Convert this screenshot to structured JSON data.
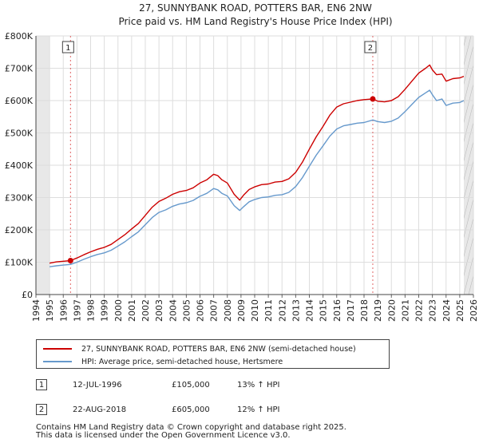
{
  "chart_data": {
    "type": "line",
    "title": "27, SUNNYBANK ROAD, POTTERS BAR, EN6 2NW",
    "subtitle": "Price paid vs. HM Land Registry's House Price Index (HPI)",
    "xlim": [
      1994,
      2026
    ],
    "ylim": [
      0,
      800000
    ],
    "x_ticks": [
      "1994",
      "1995",
      "1996",
      "1997",
      "1998",
      "1999",
      "2000",
      "2001",
      "2002",
      "2003",
      "2004",
      "2005",
      "2006",
      "2007",
      "2008",
      "2009",
      "2010",
      "2011",
      "2012",
      "2013",
      "2014",
      "2015",
      "2016",
      "2017",
      "2018",
      "2019",
      "2020",
      "2021",
      "2022",
      "2023",
      "2024",
      "2025",
      "2026"
    ],
    "y_ticks": [
      {
        "value": 0,
        "label": "£0"
      },
      {
        "value": 100000,
        "label": "£100K"
      },
      {
        "value": 200000,
        "label": "£200K"
      },
      {
        "value": 300000,
        "label": "£300K"
      },
      {
        "value": 400000,
        "label": "£400K"
      },
      {
        "value": 500000,
        "label": "£500K"
      },
      {
        "value": 600000,
        "label": "£600K"
      },
      {
        "value": 700000,
        "label": "£700K"
      },
      {
        "value": 800000,
        "label": "£800K"
      }
    ],
    "grid": true,
    "data_start_year": 1995,
    "data_end_year": 2025.3,
    "series": [
      {
        "name": "27, SUNNYBANK ROAD, POTTERS BAR, EN6 2NW (semi-detached house)",
        "color": "#cc0000",
        "x": [
          1995,
          1995.5,
          1996,
          1996.53,
          1997,
          1997.5,
          1998,
          1998.5,
          1999,
          1999.5,
          2000,
          2000.5,
          2001,
          2001.5,
          2002,
          2002.5,
          2003,
          2003.5,
          2004,
          2004.5,
          2005,
          2005.5,
          2006,
          2006.5,
          2007,
          2007.3,
          2007.6,
          2008,
          2008.5,
          2008.9,
          2009.2,
          2009.6,
          2010,
          2010.5,
          2011,
          2011.5,
          2012,
          2012.5,
          2013,
          2013.5,
          2014,
          2014.5,
          2015,
          2015.5,
          2016,
          2016.5,
          2017,
          2017.5,
          2018,
          2018.64,
          2019,
          2019.5,
          2020,
          2020.5,
          2021,
          2021.5,
          2022,
          2022.5,
          2022.8,
          2023,
          2023.3,
          2023.7,
          2024,
          2024.5,
          2025,
          2025.3
        ],
        "values": [
          97000,
          101000,
          103000,
          105000,
          113000,
          123000,
          132000,
          140000,
          146000,
          155000,
          170000,
          185000,
          203000,
          220000,
          245000,
          270000,
          288000,
          298000,
          310000,
          318000,
          322000,
          330000,
          345000,
          355000,
          372000,
          368000,
          355000,
          345000,
          310000,
          292000,
          308000,
          325000,
          333000,
          340000,
          342000,
          348000,
          350000,
          358000,
          378000,
          410000,
          450000,
          488000,
          520000,
          555000,
          580000,
          590000,
          595000,
          600000,
          603000,
          605000,
          598000,
          596000,
          600000,
          612000,
          635000,
          660000,
          685000,
          700000,
          710000,
          695000,
          680000,
          682000,
          660000,
          668000,
          670000,
          675000
        ]
      },
      {
        "name": "HPI: Average price, semi-detached house, Hertsmere",
        "color": "#6699cc",
        "x": [
          1995,
          1995.5,
          1996,
          1996.53,
          1997,
          1997.5,
          1998,
          1998.5,
          1999,
          1999.5,
          2000,
          2000.5,
          2001,
          2001.5,
          2002,
          2002.5,
          2003,
          2003.5,
          2004,
          2004.5,
          2005,
          2005.5,
          2006,
          2006.5,
          2007,
          2007.3,
          2007.6,
          2008,
          2008.5,
          2008.9,
          2009.2,
          2009.6,
          2010,
          2010.5,
          2011,
          2011.5,
          2012,
          2012.5,
          2013,
          2013.5,
          2014,
          2014.5,
          2015,
          2015.5,
          2016,
          2016.5,
          2017,
          2017.5,
          2018,
          2018.64,
          2019,
          2019.5,
          2020,
          2020.5,
          2021,
          2021.5,
          2022,
          2022.5,
          2022.8,
          2023,
          2023.3,
          2023.7,
          2024,
          2024.5,
          2025,
          2025.3
        ],
        "values": [
          86000,
          89000,
          91000,
          93000,
          100000,
          109000,
          117000,
          124000,
          129000,
          137000,
          150000,
          163000,
          179000,
          194000,
          216000,
          238000,
          254000,
          262000,
          273000,
          280000,
          284000,
          291000,
          304000,
          313000,
          328000,
          324000,
          313000,
          305000,
          275000,
          260000,
          272000,
          287000,
          294000,
          300000,
          302000,
          307000,
          309000,
          316000,
          334000,
          362000,
          397000,
          431000,
          460000,
          490000,
          512000,
          522000,
          526000,
          530000,
          532000,
          540000,
          535000,
          532000,
          536000,
          546000,
          566000,
          588000,
          610000,
          624000,
          632000,
          618000,
          600000,
          605000,
          585000,
          592000,
          594000,
          600000
        ]
      }
    ],
    "sales": [
      {
        "label": "1",
        "x": 1996.53,
        "value": 105000
      },
      {
        "label": "2",
        "x": 2018.64,
        "value": 605000
      }
    ]
  },
  "legend": {
    "price_paid": "27, SUNNYBANK ROAD, POTTERS BAR, EN6 2NW (semi-detached house)",
    "hpi": "HPI: Average price, semi-detached house, Hertsmere"
  },
  "sales_table": [
    {
      "num": "1",
      "date": "12-JUL-1996",
      "price": "£105,000",
      "hpi": "13% ↑ HPI"
    },
    {
      "num": "2",
      "date": "22-AUG-2018",
      "price": "£605,000",
      "hpi": "12% ↑ HPI"
    }
  ],
  "footer": {
    "line1": "Contains HM Land Registry data © Crown copyright and database right 2025.",
    "line2": "This data is licensed under the Open Government Licence v3.0."
  }
}
